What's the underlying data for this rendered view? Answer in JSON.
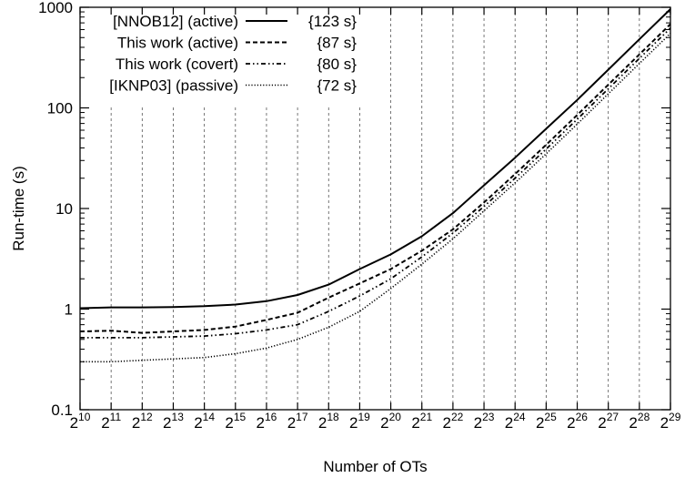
{
  "chart_data": {
    "type": "line",
    "xlabel": "Number of OTs",
    "ylabel": "Run-time (s)",
    "x_base": "2",
    "x": [
      10,
      11,
      12,
      13,
      14,
      15,
      16,
      17,
      18,
      19,
      20,
      21,
      22,
      23,
      24,
      25,
      26,
      27,
      28,
      29
    ],
    "xlim": [
      10,
      29
    ],
    "ylim": [
      0.1,
      1000
    ],
    "yscale": "log",
    "y_ticks": [
      "0.1",
      "1",
      "10",
      "100",
      "1000"
    ],
    "grid": "vertical dashed",
    "legend_position": "top-left",
    "series": [
      {
        "name": "[NNOB12] (active)",
        "time": "{123 s}",
        "line_style": "solid",
        "values": [
          1.02,
          1.04,
          1.04,
          1.05,
          1.07,
          1.11,
          1.2,
          1.38,
          1.75,
          2.5,
          3.5,
          5.3,
          9.0,
          17,
          32,
          62,
          120,
          240,
          480,
          960
        ]
      },
      {
        "name": "This work (active)",
        "time": "{87 s}",
        "line_style": "dashed",
        "values": [
          0.6,
          0.61,
          0.58,
          0.6,
          0.62,
          0.67,
          0.78,
          0.92,
          1.3,
          1.8,
          2.5,
          3.8,
          6.2,
          11.5,
          22,
          43,
          85,
          170,
          340,
          680
        ]
      },
      {
        "name": "This work (covert)",
        "time": "{80 s}",
        "line_style": "dash-dot-dot",
        "values": [
          0.52,
          0.52,
          0.52,
          0.53,
          0.54,
          0.57,
          0.62,
          0.7,
          0.95,
          1.35,
          2.0,
          3.3,
          5.7,
          10.5,
          20,
          39,
          77,
          155,
          310,
          620
        ]
      },
      {
        "name": "[IKNP03] (passive)",
        "time": "{72 s}",
        "line_style": "dotted",
        "values": [
          0.3,
          0.3,
          0.31,
          0.32,
          0.33,
          0.36,
          0.41,
          0.5,
          0.66,
          0.95,
          1.6,
          2.8,
          5.0,
          9.5,
          18,
          35,
          69,
          138,
          276,
          550
        ]
      }
    ]
  }
}
